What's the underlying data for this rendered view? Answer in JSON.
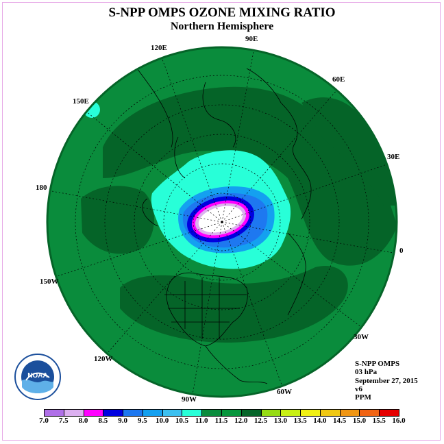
{
  "title": "S-NPP OMPS OZONE MIXING RATIO",
  "subtitle": "Northern Hemisphere",
  "longitude_labels": [
    "90E",
    "60E",
    "30E",
    "0",
    "30W",
    "60W",
    "90W",
    "120W",
    "150W",
    "180",
    "150E",
    "120E"
  ],
  "info": {
    "instrument": "S-NPP OMPS",
    "level": "03 hPa",
    "date": "September 27, 2015",
    "version": "v6",
    "units": "PPM"
  },
  "logo": {
    "text": "NOAA"
  },
  "colorbar": {
    "ticks": [
      "7.0",
      "7.5",
      "8.0",
      "8.5",
      "9.0",
      "9.5",
      "10.0",
      "10.5",
      "11.0",
      "11.5",
      "12.0",
      "12.5",
      "13.0",
      "13.5",
      "14.0",
      "14.5",
      "15.0",
      "15.5",
      "16.0"
    ],
    "colors": [
      "#b070e8",
      "#dcb0f0",
      "#ff00ff",
      "#0000e0",
      "#1e78f0",
      "#14a0f0",
      "#3cc0f0",
      "#28ffd8",
      "#0a8c3c",
      "#07963c",
      "#056428",
      "#96dc14",
      "#c8f014",
      "#f0f014",
      "#f0c814",
      "#f09614",
      "#f06414",
      "#e60000",
      "#8c5a3c"
    ]
  },
  "map_colors": {
    "ocean_green": "#0a8c3c",
    "dark_green": "#056428",
    "cyan": "#28ffd8",
    "light_blue": "#14a0f0",
    "blue": "#0000e0",
    "magenta": "#ff00ff",
    "lavender": "#dcb0f0",
    "center_white": "#ffffff"
  }
}
